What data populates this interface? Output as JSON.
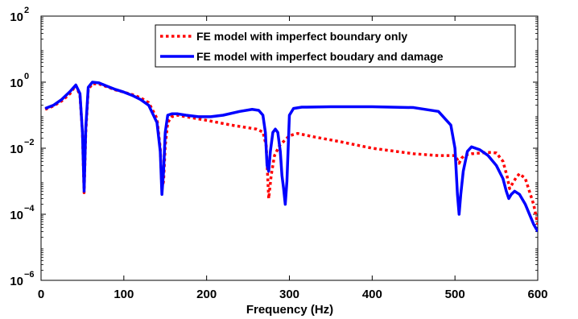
{
  "chart_data": {
    "type": "line",
    "title": "",
    "xlabel": "Frequency (Hz)",
    "ylabel": "",
    "xlim": [
      0,
      600
    ],
    "ylim": [
      1e-06,
      100
    ],
    "yscale": "log",
    "grid": false,
    "legend": "top-right",
    "x_ticks": [
      0,
      100,
      200,
      300,
      400,
      500,
      600
    ],
    "y_ticks": [
      {
        "value": 1e-06,
        "base": "10",
        "exp": "−6"
      },
      {
        "value": 0.0001,
        "base": "10",
        "exp": "−4"
      },
      {
        "value": 0.01,
        "base": "10",
        "exp": "−2"
      },
      {
        "value": 1,
        "base": "10",
        "exp": "0"
      },
      {
        "value": 100,
        "base": "10",
        "exp": "2"
      }
    ],
    "series": [
      {
        "name": "FE model with imperfect boundary only",
        "color": "#ff0000",
        "style": "dotted",
        "x": [
          5,
          15,
          25,
          35,
          42,
          47,
          50,
          52,
          54,
          57,
          62,
          70,
          80,
          90,
          100,
          110,
          120,
          130,
          140,
          144,
          146,
          148,
          150,
          153,
          158,
          165,
          175,
          200,
          230,
          260,
          268,
          272,
          275,
          278,
          282,
          288,
          295,
          300,
          310,
          330,
          360,
          400,
          450,
          480,
          500,
          503,
          505,
          508,
          512,
          520,
          540,
          550,
          558,
          563,
          566,
          570,
          574,
          578,
          585,
          595,
          600
        ],
        "y": [
          0.15,
          0.19,
          0.27,
          0.45,
          0.8,
          0.4,
          0.03,
          0.00045,
          0.03,
          0.6,
          0.9,
          0.88,
          0.72,
          0.58,
          0.5,
          0.42,
          0.34,
          0.24,
          0.08,
          0.01,
          0.0006,
          0.001,
          0.012,
          0.06,
          0.09,
          0.1,
          0.09,
          0.07,
          0.05,
          0.038,
          0.031,
          0.012,
          0.0003,
          0.0015,
          0.006,
          0.012,
          0.018,
          0.024,
          0.028,
          0.022,
          0.016,
          0.01,
          0.0068,
          0.006,
          0.006,
          0.0045,
          0.0035,
          0.005,
          0.0062,
          0.0068,
          0.0075,
          0.0072,
          0.004,
          0.0014,
          0.0006,
          0.0009,
          0.0013,
          0.0017,
          0.0012,
          0.0002,
          5e-05
        ]
      },
      {
        "name": "FE model with imperfect boudary and damage",
        "color": "#0000ff",
        "style": "solid",
        "x": [
          5,
          15,
          25,
          35,
          42,
          47,
          50,
          52,
          54,
          57,
          62,
          70,
          80,
          90,
          100,
          110,
          120,
          130,
          140,
          144,
          146,
          148,
          150,
          153,
          158,
          165,
          175,
          190,
          205,
          220,
          240,
          255,
          263,
          268,
          271,
          273,
          275,
          277,
          280,
          283,
          286,
          289,
          291,
          293,
          295,
          297,
          300,
          305,
          315,
          350,
          400,
          450,
          480,
          495,
          500,
          503,
          505,
          507,
          510,
          515,
          520,
          530,
          540,
          550,
          558,
          562,
          565,
          568,
          572,
          578,
          585,
          595,
          600
        ],
        "y": [
          0.16,
          0.2,
          0.3,
          0.52,
          0.82,
          0.45,
          0.03,
          0.0005,
          0.04,
          0.7,
          1.0,
          0.95,
          0.75,
          0.6,
          0.5,
          0.4,
          0.3,
          0.2,
          0.06,
          0.008,
          0.0004,
          0.002,
          0.03,
          0.1,
          0.11,
          0.11,
          0.1,
          0.09,
          0.09,
          0.1,
          0.13,
          0.15,
          0.14,
          0.1,
          0.03,
          0.003,
          0.002,
          0.008,
          0.03,
          0.038,
          0.03,
          0.008,
          0.0015,
          0.0006,
          0.0002,
          0.001,
          0.1,
          0.16,
          0.175,
          0.18,
          0.18,
          0.17,
          0.13,
          0.05,
          0.01,
          0.0004,
          0.0001,
          0.0004,
          0.002,
          0.008,
          0.011,
          0.009,
          0.006,
          0.003,
          0.0012,
          0.0005,
          0.0003,
          0.0004,
          0.0005,
          0.0004,
          0.0002,
          5e-05,
          3e-05
        ]
      }
    ]
  }
}
